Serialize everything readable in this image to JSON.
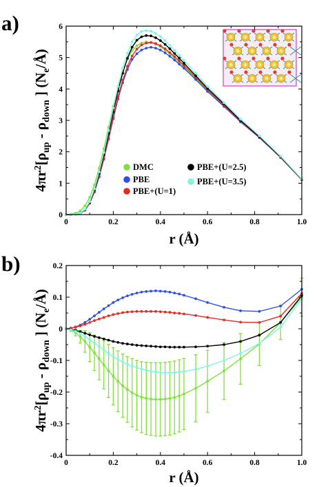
{
  "chart_data": [
    {
      "type": "line",
      "panel_label": "a)",
      "xlabel": "r (Å)",
      "ylabel": {
        "pre": "4πr",
        "sup": "2",
        "open": "[ρ",
        "sub1": "up",
        "mid": " - ρ",
        "sub2": "down",
        "close": " ] (N",
        "sub3": "e",
        "end": "/Å)"
      },
      "xlim": [
        0,
        1.0
      ],
      "ylim": [
        0,
        6
      ],
      "xticks": [
        "0",
        "0.2",
        "0.4",
        "0.6",
        "0.8",
        "1.0"
      ],
      "yticks": [
        "0",
        "1",
        "2",
        "3",
        "4",
        "5",
        "6"
      ],
      "x": [
        0.0,
        0.02,
        0.04,
        0.06,
        0.08,
        0.1,
        0.12,
        0.14,
        0.16,
        0.18,
        0.2,
        0.22,
        0.24,
        0.26,
        0.28,
        0.3,
        0.32,
        0.34,
        0.36,
        0.38,
        0.4,
        0.42,
        0.44,
        0.46,
        0.48,
        0.5,
        0.55,
        0.6,
        0.67,
        0.74,
        0.82,
        0.91,
        1.0
      ],
      "series": [
        {
          "name": "DMC",
          "color": "#7ee23a",
          "values": [
            0.0,
            0.01,
            0.04,
            0.12,
            0.28,
            0.55,
            0.95,
            1.48,
            2.1,
            2.78,
            3.45,
            4.05,
            4.55,
            4.95,
            5.22,
            5.38,
            5.46,
            5.5,
            5.48,
            5.42,
            5.35,
            5.24,
            5.12,
            4.98,
            4.84,
            4.7,
            4.34,
            3.96,
            3.48,
            2.98,
            2.48,
            1.85,
            1.12
          ]
        },
        {
          "name": "PBE",
          "color": "#2c4fe6",
          "values": [
            0.0,
            0.0,
            0.01,
            0.04,
            0.14,
            0.36,
            0.72,
            1.2,
            1.76,
            2.4,
            3.05,
            3.68,
            4.2,
            4.62,
            4.94,
            5.12,
            5.24,
            5.3,
            5.33,
            5.3,
            5.24,
            5.15,
            5.04,
            4.92,
            4.79,
            4.66,
            4.3,
            3.92,
            3.44,
            2.95,
            2.45,
            1.82,
            1.11
          ]
        },
        {
          "name": "PBE+(U=1)",
          "color": "#e62a20",
          "values": [
            0.0,
            0.0,
            0.01,
            0.04,
            0.15,
            0.37,
            0.74,
            1.23,
            1.8,
            2.45,
            3.11,
            3.75,
            4.28,
            4.72,
            5.05,
            5.27,
            5.4,
            5.46,
            5.48,
            5.45,
            5.38,
            5.28,
            5.16,
            5.03,
            4.89,
            4.75,
            4.37,
            3.98,
            3.48,
            2.98,
            2.46,
            1.82,
            1.11
          ]
        },
        {
          "name": "PBE+(U=2.5)",
          "color": "#000000",
          "values": [
            0.0,
            0.0,
            0.01,
            0.05,
            0.16,
            0.39,
            0.78,
            1.3,
            1.9,
            2.58,
            3.27,
            3.94,
            4.5,
            4.98,
            5.33,
            5.55,
            5.66,
            5.7,
            5.69,
            5.63,
            5.54,
            5.42,
            5.28,
            5.13,
            4.98,
            4.82,
            4.42,
            4.02,
            3.52,
            3.0,
            2.48,
            1.84,
            1.12
          ]
        },
        {
          "name": "PBE+(U=3.5)",
          "color": "#7ff5e3",
          "values": [
            0.0,
            0.0,
            0.01,
            0.05,
            0.17,
            0.41,
            0.82,
            1.36,
            1.98,
            2.68,
            3.4,
            4.08,
            4.66,
            5.14,
            5.5,
            5.72,
            5.83,
            5.86,
            5.84,
            5.77,
            5.67,
            5.54,
            5.39,
            5.23,
            5.07,
            4.91,
            4.5,
            4.08,
            3.56,
            3.04,
            2.51,
            1.86,
            1.13
          ]
        }
      ],
      "legend": "upper-left, two columns",
      "inset": "crystal structure image, top-right",
      "grid": false
    },
    {
      "type": "line",
      "panel_label": "b)",
      "xlabel": "r (Å)",
      "ylabel": {
        "pre": "4πr",
        "sup": "2",
        "open": "[ρ",
        "sub1": "up",
        "mid": " - ρ",
        "sub2": "down",
        "close": " ] (N",
        "sub3": "e",
        "end": "/Å)"
      },
      "xlim": [
        0,
        1.0
      ],
      "ylim": [
        -0.4,
        0.2
      ],
      "xticks": [
        "0",
        "0.2",
        "0.4",
        "0.6",
        "0.8",
        "1.0"
      ],
      "yticks": [
        "-0.4",
        "-0.3",
        "-0.2",
        "-0.1",
        "0",
        "0.1",
        "0.2"
      ],
      "x": [
        0.0,
        0.02,
        0.04,
        0.06,
        0.08,
        0.1,
        0.12,
        0.14,
        0.16,
        0.18,
        0.2,
        0.22,
        0.24,
        0.26,
        0.28,
        0.3,
        0.32,
        0.34,
        0.36,
        0.38,
        0.4,
        0.42,
        0.44,
        0.46,
        0.48,
        0.5,
        0.55,
        0.6,
        0.67,
        0.74,
        0.82,
        0.91,
        1.0
      ],
      "series": [
        {
          "name": "DMC",
          "color": "#7ee23a",
          "values": [
            0.0,
            -0.004,
            -0.012,
            -0.025,
            -0.04,
            -0.058,
            -0.076,
            -0.095,
            -0.114,
            -0.133,
            -0.15,
            -0.166,
            -0.18,
            -0.192,
            -0.202,
            -0.21,
            -0.216,
            -0.22,
            -0.222,
            -0.223,
            -0.223,
            -0.222,
            -0.22,
            -0.217,
            -0.212,
            -0.206,
            -0.188,
            -0.166,
            -0.133,
            -0.095,
            -0.048,
            0.02,
            0.1
          ],
          "errors": [
            0.0,
            0.004,
            0.01,
            0.02,
            0.034,
            0.046,
            0.056,
            0.066,
            0.076,
            0.084,
            0.09,
            0.096,
            0.1,
            0.104,
            0.108,
            0.11,
            0.112,
            0.114,
            0.115,
            0.116,
            0.116,
            0.116,
            0.116,
            0.115,
            0.114,
            0.112,
            0.106,
            0.098,
            0.09,
            0.08,
            0.068,
            0.054,
            0.06
          ]
        },
        {
          "name": "PBE",
          "color": "#2c4fe6",
          "values": [
            0.0,
            0.002,
            0.006,
            0.012,
            0.02,
            0.03,
            0.041,
            0.052,
            0.063,
            0.073,
            0.083,
            0.091,
            0.098,
            0.104,
            0.109,
            0.113,
            0.116,
            0.118,
            0.119,
            0.12,
            0.119,
            0.118,
            0.116,
            0.113,
            0.11,
            0.106,
            0.095,
            0.083,
            0.068,
            0.057,
            0.055,
            0.072,
            0.125
          ]
        },
        {
          "name": "PBE+(U=1)",
          "color": "#e62a20",
          "values": [
            0.0,
            0.002,
            0.005,
            0.009,
            0.014,
            0.02,
            0.026,
            0.031,
            0.036,
            0.041,
            0.045,
            0.048,
            0.051,
            0.053,
            0.054,
            0.055,
            0.055,
            0.055,
            0.055,
            0.055,
            0.054,
            0.053,
            0.052,
            0.05,
            0.049,
            0.047,
            0.042,
            0.036,
            0.028,
            0.021,
            0.02,
            0.04,
            0.112
          ]
        },
        {
          "name": "PBE+(U=2.5)",
          "color": "#000000",
          "values": [
            0.0,
            -0.002,
            -0.005,
            -0.009,
            -0.014,
            -0.019,
            -0.024,
            -0.028,
            -0.032,
            -0.036,
            -0.04,
            -0.043,
            -0.046,
            -0.048,
            -0.05,
            -0.052,
            -0.053,
            -0.054,
            -0.055,
            -0.056,
            -0.057,
            -0.057,
            -0.058,
            -0.058,
            -0.058,
            -0.058,
            -0.057,
            -0.055,
            -0.05,
            -0.04,
            -0.02,
            0.02,
            0.105
          ]
        },
        {
          "name": "PBE+(U=3.5)",
          "color": "#7ff5e3",
          "values": [
            0.0,
            -0.003,
            -0.008,
            -0.015,
            -0.024,
            -0.034,
            -0.045,
            -0.056,
            -0.067,
            -0.078,
            -0.088,
            -0.097,
            -0.105,
            -0.112,
            -0.118,
            -0.123,
            -0.127,
            -0.131,
            -0.134,
            -0.136,
            -0.138,
            -0.139,
            -0.139,
            -0.138,
            -0.137,
            -0.135,
            -0.128,
            -0.118,
            -0.1,
            -0.078,
            -0.046,
            0.005,
            0.095
          ]
        }
      ],
      "grid": false
    }
  ]
}
